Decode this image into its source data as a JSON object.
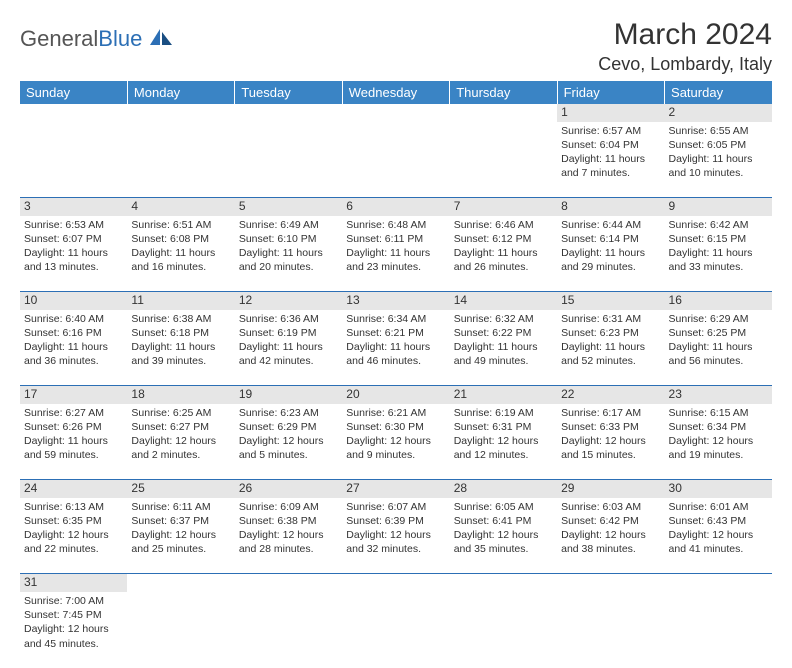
{
  "logo": {
    "part1": "General",
    "part2": "Blue"
  },
  "title": "March 2024",
  "location": "Cevo, Lombardy, Italy",
  "colors": {
    "header_bg": "#3a84c5",
    "header_text": "#ffffff",
    "daynum_bg": "#e6e6e6",
    "border": "#2c6fb5",
    "text": "#333333",
    "logo_gray": "#555555",
    "logo_blue": "#2c6fb5"
  },
  "weekdays": [
    "Sunday",
    "Monday",
    "Tuesday",
    "Wednesday",
    "Thursday",
    "Friday",
    "Saturday"
  ],
  "weeks": [
    {
      "days": [
        null,
        null,
        null,
        null,
        null,
        {
          "n": "1",
          "sunrise": "Sunrise: 6:57 AM",
          "sunset": "Sunset: 6:04 PM",
          "daylight": "Daylight: 11 hours and 7 minutes."
        },
        {
          "n": "2",
          "sunrise": "Sunrise: 6:55 AM",
          "sunset": "Sunset: 6:05 PM",
          "daylight": "Daylight: 11 hours and 10 minutes."
        }
      ]
    },
    {
      "days": [
        {
          "n": "3",
          "sunrise": "Sunrise: 6:53 AM",
          "sunset": "Sunset: 6:07 PM",
          "daylight": "Daylight: 11 hours and 13 minutes."
        },
        {
          "n": "4",
          "sunrise": "Sunrise: 6:51 AM",
          "sunset": "Sunset: 6:08 PM",
          "daylight": "Daylight: 11 hours and 16 minutes."
        },
        {
          "n": "5",
          "sunrise": "Sunrise: 6:49 AM",
          "sunset": "Sunset: 6:10 PM",
          "daylight": "Daylight: 11 hours and 20 minutes."
        },
        {
          "n": "6",
          "sunrise": "Sunrise: 6:48 AM",
          "sunset": "Sunset: 6:11 PM",
          "daylight": "Daylight: 11 hours and 23 minutes."
        },
        {
          "n": "7",
          "sunrise": "Sunrise: 6:46 AM",
          "sunset": "Sunset: 6:12 PM",
          "daylight": "Daylight: 11 hours and 26 minutes."
        },
        {
          "n": "8",
          "sunrise": "Sunrise: 6:44 AM",
          "sunset": "Sunset: 6:14 PM",
          "daylight": "Daylight: 11 hours and 29 minutes."
        },
        {
          "n": "9",
          "sunrise": "Sunrise: 6:42 AM",
          "sunset": "Sunset: 6:15 PM",
          "daylight": "Daylight: 11 hours and 33 minutes."
        }
      ]
    },
    {
      "days": [
        {
          "n": "10",
          "sunrise": "Sunrise: 6:40 AM",
          "sunset": "Sunset: 6:16 PM",
          "daylight": "Daylight: 11 hours and 36 minutes."
        },
        {
          "n": "11",
          "sunrise": "Sunrise: 6:38 AM",
          "sunset": "Sunset: 6:18 PM",
          "daylight": "Daylight: 11 hours and 39 minutes."
        },
        {
          "n": "12",
          "sunrise": "Sunrise: 6:36 AM",
          "sunset": "Sunset: 6:19 PM",
          "daylight": "Daylight: 11 hours and 42 minutes."
        },
        {
          "n": "13",
          "sunrise": "Sunrise: 6:34 AM",
          "sunset": "Sunset: 6:21 PM",
          "daylight": "Daylight: 11 hours and 46 minutes."
        },
        {
          "n": "14",
          "sunrise": "Sunrise: 6:32 AM",
          "sunset": "Sunset: 6:22 PM",
          "daylight": "Daylight: 11 hours and 49 minutes."
        },
        {
          "n": "15",
          "sunrise": "Sunrise: 6:31 AM",
          "sunset": "Sunset: 6:23 PM",
          "daylight": "Daylight: 11 hours and 52 minutes."
        },
        {
          "n": "16",
          "sunrise": "Sunrise: 6:29 AM",
          "sunset": "Sunset: 6:25 PM",
          "daylight": "Daylight: 11 hours and 56 minutes."
        }
      ]
    },
    {
      "days": [
        {
          "n": "17",
          "sunrise": "Sunrise: 6:27 AM",
          "sunset": "Sunset: 6:26 PM",
          "daylight": "Daylight: 11 hours and 59 minutes."
        },
        {
          "n": "18",
          "sunrise": "Sunrise: 6:25 AM",
          "sunset": "Sunset: 6:27 PM",
          "daylight": "Daylight: 12 hours and 2 minutes."
        },
        {
          "n": "19",
          "sunrise": "Sunrise: 6:23 AM",
          "sunset": "Sunset: 6:29 PM",
          "daylight": "Daylight: 12 hours and 5 minutes."
        },
        {
          "n": "20",
          "sunrise": "Sunrise: 6:21 AM",
          "sunset": "Sunset: 6:30 PM",
          "daylight": "Daylight: 12 hours and 9 minutes."
        },
        {
          "n": "21",
          "sunrise": "Sunrise: 6:19 AM",
          "sunset": "Sunset: 6:31 PM",
          "daylight": "Daylight: 12 hours and 12 minutes."
        },
        {
          "n": "22",
          "sunrise": "Sunrise: 6:17 AM",
          "sunset": "Sunset: 6:33 PM",
          "daylight": "Daylight: 12 hours and 15 minutes."
        },
        {
          "n": "23",
          "sunrise": "Sunrise: 6:15 AM",
          "sunset": "Sunset: 6:34 PM",
          "daylight": "Daylight: 12 hours and 19 minutes."
        }
      ]
    },
    {
      "days": [
        {
          "n": "24",
          "sunrise": "Sunrise: 6:13 AM",
          "sunset": "Sunset: 6:35 PM",
          "daylight": "Daylight: 12 hours and 22 minutes."
        },
        {
          "n": "25",
          "sunrise": "Sunrise: 6:11 AM",
          "sunset": "Sunset: 6:37 PM",
          "daylight": "Daylight: 12 hours and 25 minutes."
        },
        {
          "n": "26",
          "sunrise": "Sunrise: 6:09 AM",
          "sunset": "Sunset: 6:38 PM",
          "daylight": "Daylight: 12 hours and 28 minutes."
        },
        {
          "n": "27",
          "sunrise": "Sunrise: 6:07 AM",
          "sunset": "Sunset: 6:39 PM",
          "daylight": "Daylight: 12 hours and 32 minutes."
        },
        {
          "n": "28",
          "sunrise": "Sunrise: 6:05 AM",
          "sunset": "Sunset: 6:41 PM",
          "daylight": "Daylight: 12 hours and 35 minutes."
        },
        {
          "n": "29",
          "sunrise": "Sunrise: 6:03 AM",
          "sunset": "Sunset: 6:42 PM",
          "daylight": "Daylight: 12 hours and 38 minutes."
        },
        {
          "n": "30",
          "sunrise": "Sunrise: 6:01 AM",
          "sunset": "Sunset: 6:43 PM",
          "daylight": "Daylight: 12 hours and 41 minutes."
        }
      ]
    },
    {
      "days": [
        {
          "n": "31",
          "sunrise": "Sunrise: 7:00 AM",
          "sunset": "Sunset: 7:45 PM",
          "daylight": "Daylight: 12 hours and 45 minutes."
        },
        null,
        null,
        null,
        null,
        null,
        null
      ]
    }
  ]
}
